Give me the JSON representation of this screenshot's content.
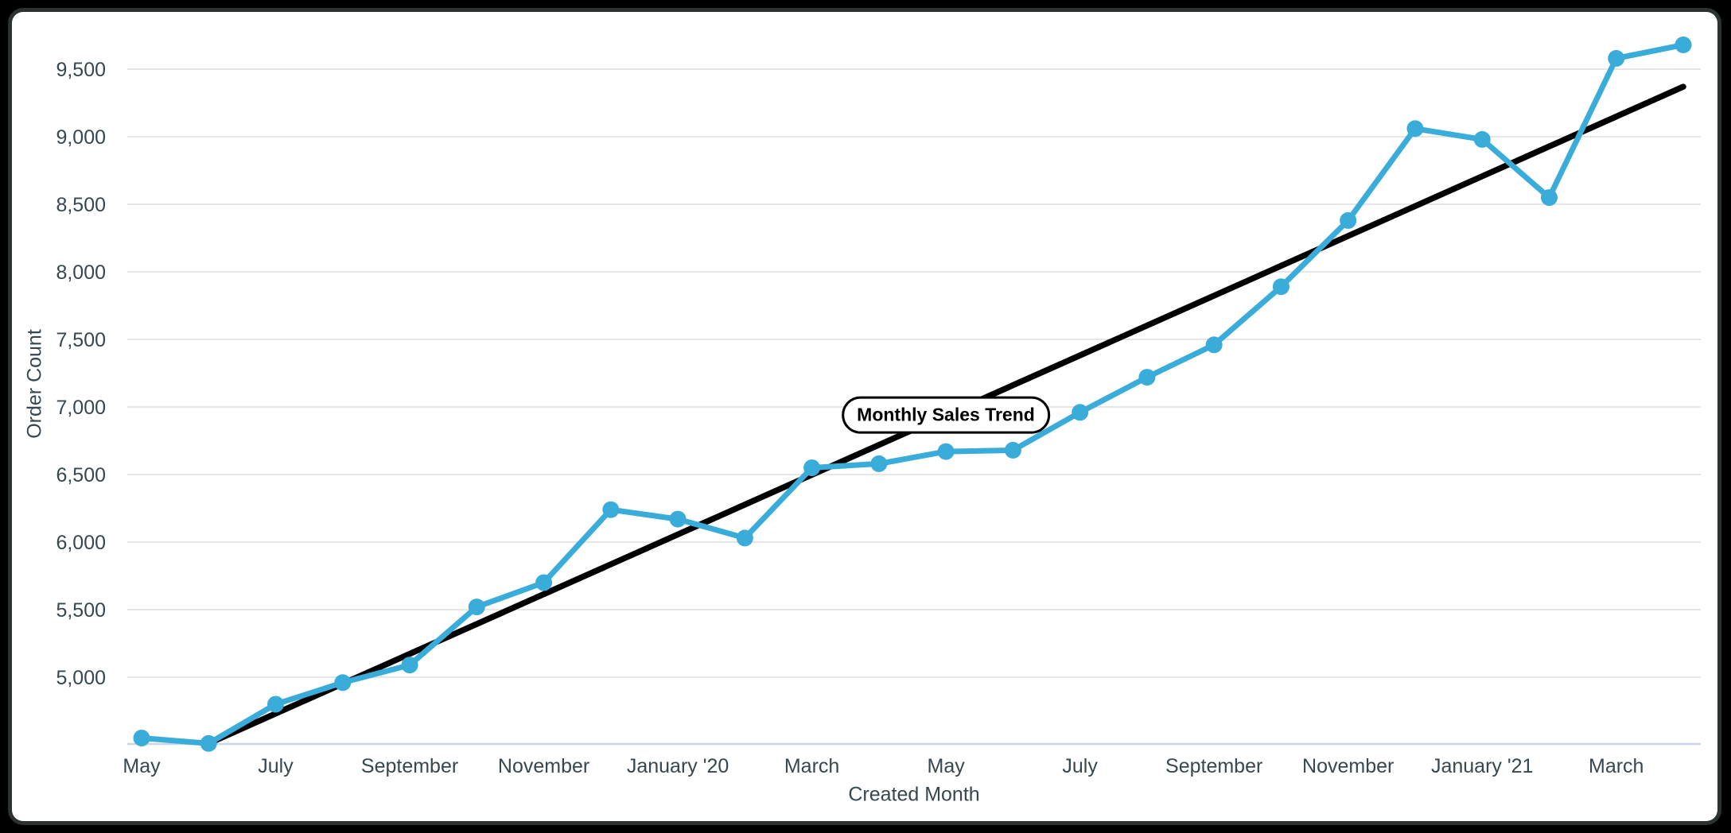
{
  "window": {
    "background": "#000000",
    "card_background": "#ffffff"
  },
  "chart_data": {
    "type": "line",
    "title": "",
    "series_label": "Monthly Sales Trend",
    "xlabel": "Created Month",
    "ylabel": "Order Count",
    "legend": "none",
    "grid": true,
    "ylim": [
      4500,
      9830
    ],
    "y_tick_labels": [
      "5,000",
      "5,500",
      "6,000",
      "6,500",
      "7,000",
      "7,500",
      "8,000",
      "8,500",
      "9,000",
      "9,500"
    ],
    "x_tick_labels": [
      "May",
      "July",
      "September",
      "November",
      "January '20",
      "March",
      "May",
      "July",
      "September",
      "November",
      "January '21",
      "March"
    ],
    "points": [
      {
        "month": "May '19",
        "value": 4550
      },
      {
        "month": "Jun '19",
        "value": 4510
      },
      {
        "month": "Jul '19",
        "value": 4800
      },
      {
        "month": "Aug '19",
        "value": 4960
      },
      {
        "month": "Sep '19",
        "value": 5090
      },
      {
        "month": "Oct '19",
        "value": 5520
      },
      {
        "month": "Nov '19",
        "value": 5700
      },
      {
        "month": "Dec '19",
        "value": 6240
      },
      {
        "month": "Jan '20",
        "value": 6170
      },
      {
        "month": "Feb '20",
        "value": 6030
      },
      {
        "month": "Mar '20",
        "value": 6550
      },
      {
        "month": "Apr '20",
        "value": 6580
      },
      {
        "month": "May '20",
        "value": 6670
      },
      {
        "month": "Jun '20",
        "value": 6680
      },
      {
        "month": "Jul '20",
        "value": 6960
      },
      {
        "month": "Aug '20",
        "value": 7220
      },
      {
        "month": "Sep '20",
        "value": 7460
      },
      {
        "month": "Oct '20",
        "value": 7890
      },
      {
        "month": "Nov '20",
        "value": 8380
      },
      {
        "month": "Dec '20",
        "value": 9060
      },
      {
        "month": "Jan '21",
        "value": 8980
      },
      {
        "month": "Feb '21",
        "value": 8550
      },
      {
        "month": "Mar '21",
        "value": 9580
      },
      {
        "month": "Apr '21",
        "value": 9680
      }
    ],
    "trend_line": {
      "start_month": "Jun '19",
      "start_value": 4510,
      "end_month": "Apr '21",
      "end_value": 9370
    },
    "colors": {
      "series_line": "#3aacd9",
      "trend_line": "#000000",
      "gridline": "#e6e6e6",
      "x_axis_line": "#ccd6eb",
      "label_text": "#37474f"
    }
  }
}
